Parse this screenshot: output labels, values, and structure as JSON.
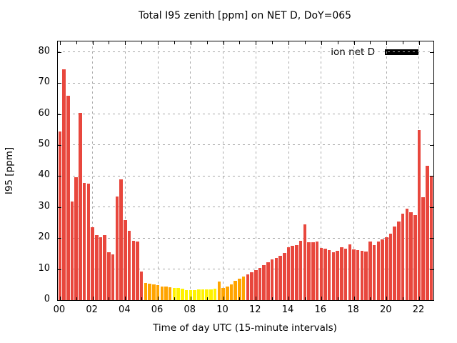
{
  "title": "Total I95 zenith [ppm] on NET D, DoY=065",
  "legend": {
    "label": "ion net D",
    "swatch_color": "#000000"
  },
  "axes": {
    "ylabel": "I95 [ppm]",
    "xlabel": "Time of day UTC (15-minute intervals)",
    "y_tick_labels": [
      "0",
      "10",
      "20",
      "30",
      "40",
      "50",
      "60",
      "70",
      "80"
    ],
    "x_tick_labels": [
      "00",
      "02",
      "04",
      "06",
      "08",
      "10",
      "12",
      "14",
      "16",
      "18",
      "20",
      "22"
    ]
  },
  "chart_data": {
    "type": "bar",
    "title": "Total I95 zenith [ppm] on NET D, DoY=065",
    "xlabel": "Time of day UTC (15-minute intervals)",
    "ylabel": "I95 [ppm]",
    "interval_minutes": 15,
    "x_hours_range": [
      0,
      23
    ],
    "ylim": [
      0,
      83.4
    ],
    "y_ticks": [
      0,
      10,
      20,
      30,
      40,
      50,
      60,
      70,
      80
    ],
    "x_tick_hours": [
      0,
      2,
      4,
      6,
      8,
      10,
      12,
      14,
      16,
      18,
      20,
      22
    ],
    "grid": true,
    "legend_position": "top-right-inside",
    "palette": {
      "red": "#e8473d",
      "orange": "#ffa400",
      "yellow": "#fff200"
    },
    "series": [
      {
        "name": "ion net D",
        "times": [
          "00:00",
          "00:15",
          "00:30",
          "00:45",
          "01:00",
          "01:15",
          "01:30",
          "01:45",
          "02:00",
          "02:15",
          "02:30",
          "02:45",
          "03:00",
          "03:15",
          "03:30",
          "03:45",
          "04:00",
          "04:15",
          "04:30",
          "04:45",
          "05:00",
          "05:15",
          "05:30",
          "05:45",
          "06:00",
          "06:15",
          "06:30",
          "06:45",
          "07:00",
          "07:15",
          "07:30",
          "07:45",
          "08:00",
          "08:15",
          "08:30",
          "08:45",
          "09:00",
          "09:15",
          "09:30",
          "09:45",
          "10:00",
          "10:15",
          "10:30",
          "10:45",
          "11:00",
          "11:15",
          "11:30",
          "11:45",
          "12:00",
          "12:15",
          "12:30",
          "12:45",
          "13:00",
          "13:15",
          "13:30",
          "13:45",
          "14:00",
          "14:15",
          "14:30",
          "14:45",
          "15:00",
          "15:15",
          "15:30",
          "15:45",
          "16:00",
          "16:15",
          "16:30",
          "16:45",
          "17:00",
          "17:15",
          "17:30",
          "17:45",
          "18:00",
          "18:15",
          "18:30",
          "18:45",
          "19:00",
          "19:15",
          "19:30",
          "19:45",
          "20:00",
          "20:15",
          "20:30",
          "20:45",
          "21:00",
          "21:15",
          "21:30",
          "21:45",
          "22:00",
          "22:15",
          "22:30",
          "22:45"
        ],
        "values": [
          54.3,
          74.4,
          66.0,
          31.9,
          39.6,
          60.4,
          37.9,
          37.6,
          23.5,
          21.0,
          20.3,
          21.0,
          15.5,
          14.8,
          33.4,
          38.9,
          25.8,
          22.3,
          19.1,
          18.9,
          9.2,
          5.5,
          5.2,
          5.0,
          4.8,
          4.5,
          4.3,
          4.2,
          4.0,
          3.9,
          3.8,
          3.2,
          3.3,
          3.2,
          3.4,
          3.4,
          3.4,
          3.5,
          3.6,
          6.1,
          4.0,
          4.4,
          5.0,
          6.2,
          6.9,
          7.6,
          8.2,
          9.0,
          9.8,
          10.4,
          11.3,
          12.2,
          13.2,
          13.7,
          14.2,
          15.3,
          17.1,
          17.6,
          17.8,
          19.1,
          24.5,
          18.6,
          18.6,
          19.0,
          16.8,
          16.5,
          16.1,
          15.5,
          15.9,
          17.1,
          16.5,
          18.0,
          16.3,
          16.2,
          15.8,
          15.6,
          18.8,
          17.7,
          19.0,
          19.6,
          20.4,
          21.5,
          23.7,
          25.3,
          27.8,
          29.5,
          28.3,
          27.5,
          54.8,
          33.2,
          43.3,
          39.8
        ],
        "colors": [
          "red",
          "red",
          "red",
          "red",
          "red",
          "red",
          "red",
          "red",
          "red",
          "red",
          "red",
          "red",
          "red",
          "red",
          "red",
          "red",
          "red",
          "red",
          "red",
          "red",
          "red",
          "orange",
          "orange",
          "orange",
          "orange",
          "orange",
          "orange",
          "orange",
          "yellow",
          "yellow",
          "yellow",
          "yellow",
          "yellow",
          "yellow",
          "yellow",
          "yellow",
          "yellow",
          "yellow",
          "yellow",
          "orange",
          "orange",
          "orange",
          "orange",
          "orange",
          "orange",
          "orange",
          "red",
          "red",
          "red",
          "red",
          "red",
          "red",
          "red",
          "red",
          "red",
          "red",
          "red",
          "red",
          "red",
          "red",
          "red",
          "red",
          "red",
          "red",
          "red",
          "red",
          "red",
          "red",
          "red",
          "red",
          "red",
          "red",
          "red",
          "red",
          "red",
          "red",
          "red",
          "red",
          "red",
          "red",
          "red",
          "red",
          "red",
          "red",
          "red",
          "red",
          "red",
          "red",
          "red",
          "red",
          "red",
          "red"
        ]
      }
    ]
  }
}
